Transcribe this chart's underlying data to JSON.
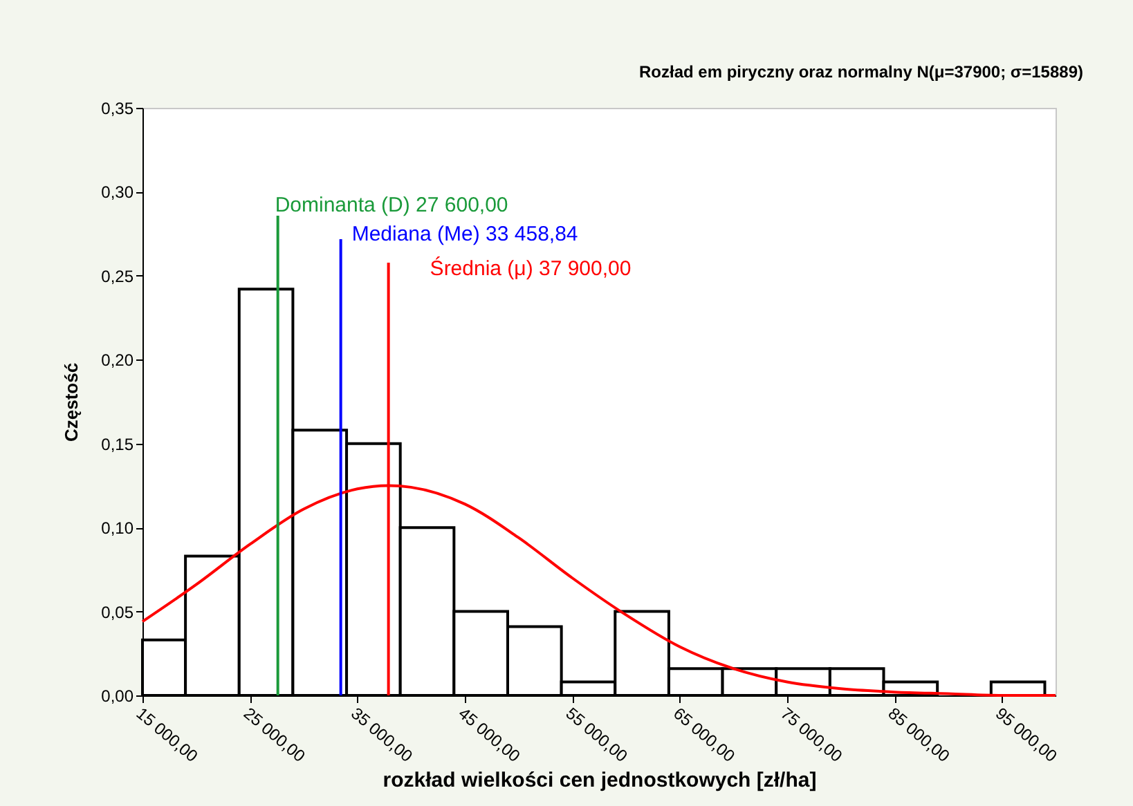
{
  "chart_data": {
    "type": "histogram",
    "title": "Rozład em piryczny oraz normalny N(μ=37900; σ=15889)",
    "xlabel": "rozkład wielkości cen jednostkowych [zł/ha]",
    "ylabel": "Częstość",
    "bins": [
      15000,
      19000,
      24000,
      29000,
      34000,
      39000,
      44000,
      49000,
      54000,
      59000,
      64000,
      69000,
      74000,
      79000,
      84000,
      89000,
      94000,
      99000
    ],
    "values": [
      0.033,
      0.083,
      0.242,
      0.158,
      0.15,
      0.1,
      0.05,
      0.041,
      0.008,
      0.05,
      0.016,
      0.016,
      0.016,
      0.016,
      0.008,
      0,
      0.008
    ],
    "color": "#ffffff",
    "series": [
      {
        "type": "line",
        "color": "#ff0000",
        "x": [
          15000,
          20000,
          25000,
          30000,
          35000,
          37900,
          40000,
          45000,
          50000,
          55000,
          60000,
          65000,
          70000,
          75000,
          80000,
          85000,
          90000,
          95000,
          100000
        ],
        "values": [
          0.044,
          0.066,
          0.09,
          0.111,
          0.123,
          0.125,
          0.124,
          0.114,
          0.094,
          0.07,
          0.048,
          0.029,
          0.016,
          0.008,
          0.004,
          0.002,
          0.001,
          0.0,
          0.0
        ]
      }
    ],
    "ref_lines": [
      {
        "axis": "x",
        "value": 27600,
        "label": "Dominanta (D) 27 600,00",
        "color": "#1a9a3a"
      },
      {
        "axis": "x",
        "value": 33458.84,
        "label": "Mediana (Me)  33 458,84",
        "color": "#0000ff"
      },
      {
        "axis": "x",
        "value": 37900,
        "label": "Średnia (μ) 37 900,00",
        "color": "#ff0000"
      }
    ],
    "xlim": [
      15000,
      100000
    ],
    "xticks": [
      {
        "value": 15000,
        "label": "15 000,00"
      },
      {
        "value": 25000,
        "label": "25 000,00"
      },
      {
        "value": 35000,
        "label": "35 000,00"
      },
      {
        "value": 45000,
        "label": "45 000,00"
      },
      {
        "value": 55000,
        "label": "55 000,00"
      },
      {
        "value": 65000,
        "label": "65 000,00"
      },
      {
        "value": 75000,
        "label": "75 000,00"
      },
      {
        "value": 85000,
        "label": "85 000,00"
      },
      {
        "value": 95000,
        "label": "95 000,00"
      }
    ],
    "ylim": [
      0,
      0.35
    ],
    "yticks": [
      {
        "value": 0,
        "label": "0,00"
      },
      {
        "value": 0.05,
        "label": "0,05"
      },
      {
        "value": 0.1,
        "label": "0,10"
      },
      {
        "value": 0.15,
        "label": "0,15"
      },
      {
        "value": 0.2,
        "label": "0,20"
      },
      {
        "value": 0.25,
        "label": "0,25"
      },
      {
        "value": 0.3,
        "label": "0,30"
      },
      {
        "value": 0.35,
        "label": "0,35"
      }
    ],
    "grid": false
  }
}
